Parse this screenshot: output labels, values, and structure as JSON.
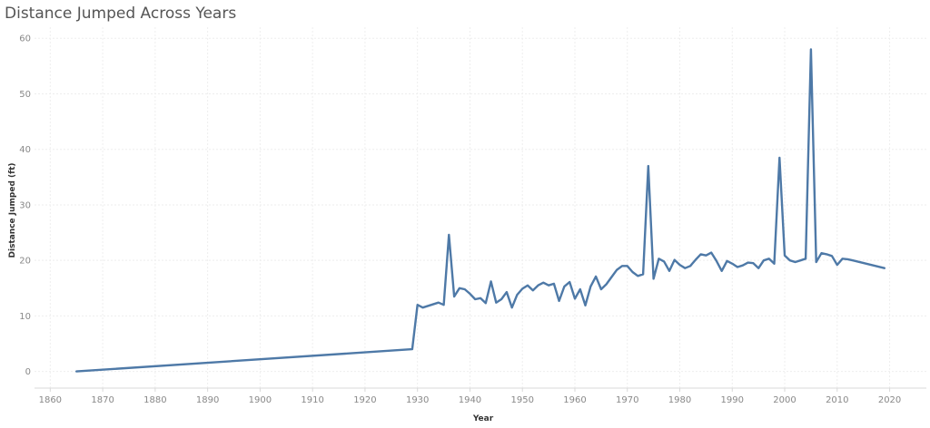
{
  "chart_data": {
    "type": "line",
    "title": "Distance Jumped Across Years",
    "xlabel": "Year",
    "ylabel": "Distance Jumped (ft)",
    "xlim": [
      1857,
      2027
    ],
    "ylim": [
      -3,
      62
    ],
    "x_ticks": [
      1860,
      1870,
      1880,
      1890,
      1900,
      1910,
      1920,
      1930,
      1940,
      1950,
      1960,
      1970,
      1980,
      1990,
      2000,
      2010,
      2020
    ],
    "y_ticks": [
      0,
      10,
      20,
      30,
      40,
      50,
      60
    ],
    "grid": true,
    "legend": "none",
    "series_color": "#4e79a7",
    "x": [
      1865,
      1929,
      1930,
      1931,
      1934,
      1935,
      1936,
      1937,
      1938,
      1939,
      1940,
      1941,
      1942,
      1943,
      1944,
      1945,
      1946,
      1947,
      1948,
      1949,
      1950,
      1951,
      1952,
      1953,
      1954,
      1955,
      1956,
      1957,
      1958,
      1959,
      1960,
      1961,
      1962,
      1963,
      1964,
      1965,
      1966,
      1967,
      1968,
      1969,
      1970,
      1971,
      1972,
      1973,
      1974,
      1975,
      1976,
      1977,
      1978,
      1979,
      1980,
      1981,
      1982,
      1983,
      1984,
      1985,
      1986,
      1987,
      1988,
      1989,
      1990,
      1991,
      1992,
      1993,
      1994,
      1995,
      1996,
      1997,
      1998,
      1999,
      2000,
      2001,
      2002,
      2003,
      2004,
      2005,
      2006,
      2007,
      2008,
      2009,
      2010,
      2011,
      2012,
      2013,
      2019
    ],
    "y": [
      0,
      4,
      12,
      11.5,
      12.4,
      12,
      24.6,
      13.5,
      15,
      14.8,
      14,
      13,
      13.2,
      12.3,
      16.2,
      12.4,
      13,
      14.3,
      11.5,
      13.8,
      14.9,
      15.5,
      14.6,
      15.5,
      16,
      15.5,
      15.8,
      12.7,
      15.3,
      16.1,
      13.1,
      14.8,
      11.9,
      15.3,
      17.1,
      14.8,
      15.7,
      17,
      18.3,
      19,
      19,
      17.9,
      17.2,
      17.5,
      37,
      16.7,
      20.3,
      19.8,
      18.1,
      20.1,
      19.2,
      18.6,
      19,
      20.1,
      21.1,
      20.9,
      21.4,
      19.9,
      18.1,
      19.9,
      19.4,
      18.8,
      19.1,
      19.6,
      19.5,
      18.6,
      20,
      20.3,
      19.4,
      38.5,
      20.9,
      20,
      19.7,
      20,
      20.3,
      58,
      19.7,
      21.3,
      21.1,
      20.8,
      19.2,
      20.3,
      20.2,
      20,
      18.6
    ]
  }
}
